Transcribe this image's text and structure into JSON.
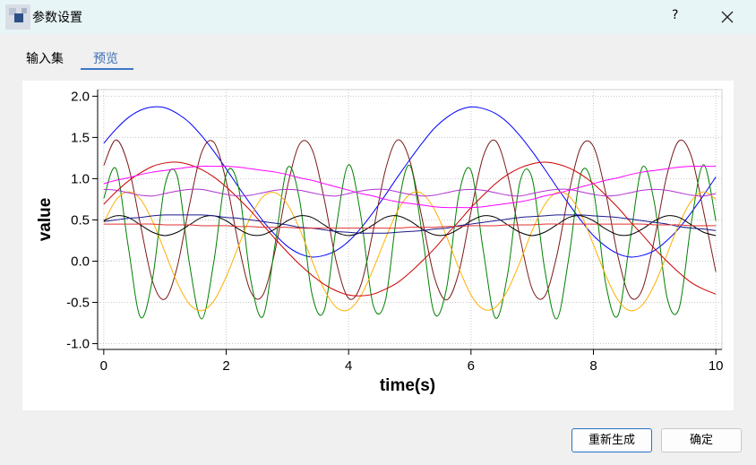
{
  "window": {
    "title": "参数设置",
    "help": "?"
  },
  "tabs": [
    "输入集",
    "预览"
  ],
  "buttons": [
    "重新生成",
    "确定"
  ],
  "chart_data": {
    "type": "line",
    "xlabel": "time(s)",
    "ylabel": "value",
    "x": [
      0,
      0.2,
      0.4,
      0.6,
      0.8,
      1,
      1.2,
      1.4,
      1.6,
      1.8,
      2,
      2.2,
      2.4,
      2.6,
      2.8,
      3,
      3.2,
      3.4,
      3.6,
      3.8,
      4,
      4.2,
      4.4,
      4.6,
      4.8,
      5,
      5.2,
      5.4,
      5.6,
      5.8,
      6,
      6.2,
      6.4,
      6.6,
      6.8,
      7,
      7.2,
      7.4,
      7.6,
      7.8,
      8,
      8.2,
      8.4,
      8.6,
      8.8,
      9,
      9.2,
      9.4,
      9.6,
      9.8,
      10
    ],
    "xlim": [
      -0.1,
      10.1
    ],
    "xticks": [
      0,
      2,
      4,
      6,
      8,
      10
    ],
    "ylim": [
      -1.07,
      2.08
    ],
    "yticks": [
      {
        "value": -1,
        "label": "-1.0"
      },
      {
        "value": -0.5,
        "label": "-0.5"
      },
      {
        "value": 0,
        "label": "0.0"
      },
      {
        "value": 0.5,
        "label": "0.5"
      },
      {
        "value": 1,
        "label": "1.0"
      },
      {
        "value": 1.5,
        "label": "1.5"
      },
      {
        "value": 2,
        "label": "2.0"
      }
    ],
    "grid": true,
    "series": [
      {
        "color": "#0000ff",
        "values": [
          1.43,
          1.6,
          1.74,
          1.83,
          1.87,
          1.86,
          1.79,
          1.68,
          1.52,
          1.33,
          1.12,
          0.9,
          0.69,
          0.49,
          0.32,
          0.18,
          0.09,
          0.05,
          0.07,
          0.13,
          0.24,
          0.4,
          0.59,
          0.8,
          1.02,
          1.23,
          1.43,
          1.61,
          1.74,
          1.83,
          1.87,
          1.85,
          1.79,
          1.68,
          1.52,
          1.33,
          1.12,
          0.9,
          0.69,
          0.49,
          0.31,
          0.18,
          0.09,
          0.05,
          0.07,
          0.13,
          0.25,
          0.4,
          0.59,
          0.8,
          1.02
        ]
      },
      {
        "color": "#7a1a1a",
        "values": [
          1.16,
          1.47,
          1.16,
          0.44,
          -0.25,
          -0.46,
          -0.07,
          0.68,
          1.32,
          1.44,
          0.97,
          0.21,
          -0.37,
          -0.41,
          0.13,
          0.9,
          1.42,
          1.36,
          0.76,
          -0.01,
          -0.45,
          -0.29,
          0.36,
          1.1,
          1.47,
          1.22,
          0.52,
          -0.19,
          -0.47,
          -0.14,
          0.6,
          1.27,
          1.46,
          1.04,
          0.29,
          -0.34,
          -0.43,
          0.06,
          0.83,
          1.39,
          1.39,
          0.83,
          0.06,
          -0.43,
          -0.34,
          0.28,
          1.04,
          1.46,
          1.27,
          0.6,
          -0.13
        ]
      },
      {
        "color": "#008000",
        "values": [
          0.76,
          1.12,
          0.18,
          -0.68,
          -0.2,
          0.92,
          1.03,
          -0.03,
          -0.7,
          0,
          1.05,
          0.9,
          -0.22,
          -0.67,
          0.21,
          1.13,
          0.74,
          -0.39,
          -0.6,
          0.42,
          1.17,
          0.55,
          -0.53,
          -0.48,
          0.62,
          1.16,
          0.34,
          -0.63,
          -0.33,
          0.8,
          1.1,
          0.13,
          -0.69,
          -0.15,
          0.96,
          1,
          -0.08,
          -0.7,
          0.05,
          1.07,
          0.86,
          -0.27,
          -0.66,
          0.26,
          1.14,
          0.69,
          -0.43,
          -0.57,
          0.47,
          1.17,
          0.49
        ]
      },
      {
        "color": "#ffb000",
        "values": [
          0.47,
          0.74,
          0.84,
          0.75,
          0.48,
          0.11,
          -0.26,
          -0.52,
          -0.6,
          -0.48,
          -0.19,
          0.18,
          0.54,
          0.78,
          0.83,
          0.69,
          0.39,
          0.01,
          -0.34,
          -0.56,
          -0.59,
          -0.42,
          -0.1,
          0.27,
          0.61,
          0.81,
          0.82,
          0.63,
          0.3,
          -0.08,
          -0.41,
          -0.58,
          -0.56,
          -0.35,
          -0.01,
          0.37,
          0.68,
          0.83,
          0.79,
          0.56,
          0.2,
          -0.17,
          -0.47,
          -0.6,
          -0.53,
          -0.28,
          0.08,
          0.45,
          0.73,
          0.84,
          0.75
        ]
      },
      {
        "color": "#cc0000",
        "values": [
          0.69,
          0.84,
          0.97,
          1.07,
          1.15,
          1.19,
          1.2,
          1.17,
          1.11,
          1.02,
          0.9,
          0.76,
          0.61,
          0.44,
          0.27,
          0.11,
          -0.04,
          -0.17,
          -0.28,
          -0.36,
          -0.41,
          -0.42,
          -0.4,
          -0.34,
          -0.26,
          -0.14,
          0,
          0.15,
          0.32,
          0.48,
          0.65,
          0.8,
          0.94,
          1.05,
          1.13,
          1.18,
          1.2,
          1.18,
          1.13,
          1.05,
          0.94,
          0.8,
          0.65,
          0.48,
          0.32,
          0.15,
          0,
          -0.14,
          -0.26,
          -0.34,
          -0.4
        ]
      },
      {
        "color": "#ff00ff",
        "values": [
          0.94,
          0.98,
          1.01,
          1.05,
          1.08,
          1.1,
          1.12,
          1.14,
          1.15,
          1.15,
          1.15,
          1.14,
          1.12,
          1.1,
          1.08,
          1.05,
          1.01,
          0.98,
          0.94,
          0.9,
          0.86,
          0.82,
          0.79,
          0.75,
          0.72,
          0.7,
          0.68,
          0.66,
          0.65,
          0.65,
          0.65,
          0.66,
          0.68,
          0.7,
          0.72,
          0.75,
          0.79,
          0.82,
          0.86,
          0.9,
          0.94,
          0.98,
          1.01,
          1.05,
          1.08,
          1.1,
          1.12,
          1.14,
          1.15,
          1.15,
          1.15
        ]
      },
      {
        "color": "#b030d0",
        "values": [
          0.87,
          0.86,
          0.83,
          0.8,
          0.79,
          0.82,
          0.85,
          0.87,
          0.87,
          0.84,
          0.81,
          0.79,
          0.8,
          0.83,
          0.86,
          0.87,
          0.86,
          0.83,
          0.8,
          0.79,
          0.82,
          0.85,
          0.87,
          0.87,
          0.84,
          0.81,
          0.79,
          0.8,
          0.83,
          0.86,
          0.87,
          0.86,
          0.83,
          0.8,
          0.79,
          0.82,
          0.85,
          0.87,
          0.87,
          0.84,
          0.81,
          0.79,
          0.8,
          0.83,
          0.86,
          0.87,
          0.86,
          0.83,
          0.8,
          0.79,
          0.82
        ]
      },
      {
        "color": "#000000",
        "values": [
          0.49,
          0.55,
          0.53,
          0.44,
          0.35,
          0.31,
          0.35,
          0.44,
          0.53,
          0.55,
          0.49,
          0.39,
          0.32,
          0.32,
          0.39,
          0.49,
          0.55,
          0.53,
          0.44,
          0.35,
          0.31,
          0.35,
          0.44,
          0.53,
          0.55,
          0.49,
          0.39,
          0.32,
          0.32,
          0.39,
          0.49,
          0.55,
          0.53,
          0.44,
          0.35,
          0.31,
          0.35,
          0.44,
          0.53,
          0.55,
          0.49,
          0.39,
          0.32,
          0.32,
          0.39,
          0.49,
          0.55,
          0.53,
          0.44,
          0.35,
          0.31
        ]
      },
      {
        "color": "#1a1a8c",
        "values": [
          0.48,
          0.5,
          0.52,
          0.53,
          0.55,
          0.56,
          0.56,
          0.56,
          0.56,
          0.55,
          0.53,
          0.52,
          0.5,
          0.48,
          0.46,
          0.44,
          0.41,
          0.4,
          0.38,
          0.36,
          0.35,
          0.34,
          0.34,
          0.34,
          0.35,
          0.36,
          0.37,
          0.39,
          0.4,
          0.43,
          0.45,
          0.47,
          0.49,
          0.51,
          0.53,
          0.54,
          0.55,
          0.56,
          0.56,
          0.56,
          0.55,
          0.54,
          0.53,
          0.51,
          0.49,
          0.47,
          0.45,
          0.42,
          0.4,
          0.39,
          0.37
        ]
      },
      {
        "color": "#e03030",
        "values": [
          0.45,
          0.45,
          0.45,
          0.45,
          0.45,
          0.44,
          0.44,
          0.44,
          0.43,
          0.43,
          0.43,
          0.42,
          0.42,
          0.41,
          0.41,
          0.41,
          0.4,
          0.4,
          0.4,
          0.4,
          0.4,
          0.4,
          0.4,
          0.4,
          0.4,
          0.41,
          0.41,
          0.41,
          0.42,
          0.42,
          0.43,
          0.43,
          0.43,
          0.44,
          0.44,
          0.44,
          0.45,
          0.45,
          0.45,
          0.45,
          0.45,
          0.45,
          0.45,
          0.45,
          0.45,
          0.44,
          0.44,
          0.44,
          0.43,
          0.43,
          0.43
        ]
      }
    ]
  }
}
